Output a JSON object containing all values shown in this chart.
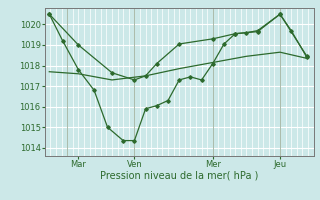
{
  "background_color": "#cce8e8",
  "grid_color": "#ffffff",
  "line_color": "#2d6a2d",
  "marker_color": "#2d6a2d",
  "xlim": [
    0,
    12
  ],
  "x_ticks_pos": [
    1.5,
    4.0,
    7.5,
    10.5
  ],
  "x_tick_labels": [
    "Mar",
    "Ven",
    "Mer",
    "Jeu"
  ],
  "x_vlines": [
    1.0,
    4.0,
    7.5,
    10.5
  ],
  "ylim": [
    1013.6,
    1020.8
  ],
  "yticks": [
    1014,
    1015,
    1016,
    1017,
    1018,
    1019,
    1020
  ],
  "xlabel": "Pression niveau de la mer( hPa )",
  "series1_x": [
    0.2,
    0.8,
    1.5,
    2.2,
    2.8,
    3.5,
    4.0,
    4.5,
    5.0,
    5.5,
    6.0,
    6.5,
    7.0,
    7.5,
    8.0,
    8.5,
    9.0,
    9.5,
    10.5,
    11.0,
    11.7
  ],
  "series1_y": [
    1020.5,
    1019.2,
    1017.8,
    1016.8,
    1015.0,
    1014.35,
    1014.35,
    1015.9,
    1016.05,
    1016.3,
    1017.3,
    1017.45,
    1017.3,
    1018.1,
    1019.05,
    1019.55,
    1019.6,
    1019.7,
    1020.5,
    1019.7,
    1018.4
  ],
  "series2_x": [
    0.2,
    1.5,
    3.0,
    4.5,
    6.0,
    7.5,
    9.0,
    10.5,
    11.7
  ],
  "series2_y": [
    1017.7,
    1017.6,
    1017.3,
    1017.5,
    1017.85,
    1018.15,
    1018.45,
    1018.65,
    1018.35
  ],
  "series3_x": [
    0.2,
    1.5,
    3.0,
    4.0,
    4.5,
    5.0,
    6.0,
    7.5,
    8.5,
    9.5,
    10.5,
    11.7
  ],
  "series3_y": [
    1020.5,
    1019.0,
    1017.65,
    1017.3,
    1017.5,
    1018.1,
    1019.05,
    1019.3,
    1019.55,
    1019.65,
    1020.5,
    1018.45
  ]
}
